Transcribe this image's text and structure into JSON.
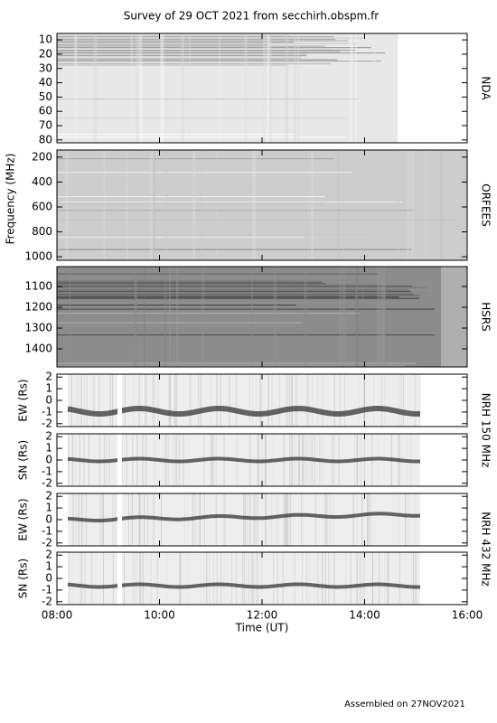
{
  "title": "Survey of 29 OCT 2021 from secchirh.obspm.fr",
  "footer": "Assembled on 27NOV2021",
  "chart_data": [
    {
      "type": "spectrogram",
      "side_label": "NDA",
      "ylim": [
        5.5,
        82
      ],
      "inverted": true,
      "yticks": [
        10,
        20,
        30,
        40,
        50,
        60,
        70,
        80
      ]
    },
    {
      "type": "spectrogram",
      "side_label": "ORFEES",
      "ylabel": "Frequency (MHz)",
      "ylim": [
        143,
        1028
      ],
      "inverted": true,
      "yticks": [
        200,
        400,
        600,
        800,
        1000
      ]
    },
    {
      "type": "spectrogram",
      "side_label": "HSRS",
      "ylim": [
        1004,
        1487
      ],
      "inverted": true,
      "yticks": [
        1100,
        1200,
        1300,
        1400
      ]
    },
    {
      "type": "radioheliograph",
      "side_label": "NRH 150 MHz",
      "ylabel": "EW (Rs)",
      "ylim": [
        -2.25,
        2.25
      ],
      "yticks": [
        -2,
        -1,
        0,
        1,
        2
      ]
    },
    {
      "type": "radioheliograph",
      "ylabel": "SN (Rs)",
      "ylim": [
        -2.25,
        2.25
      ],
      "yticks": [
        -2,
        -1,
        0,
        1,
        2
      ]
    },
    {
      "type": "radioheliograph",
      "side_label": "NRH 432 MHz",
      "ylabel": "EW (Rs)",
      "ylim": [
        -2.25,
        2.25
      ],
      "yticks": [
        -2,
        -1,
        0,
        1,
        2
      ]
    },
    {
      "type": "radioheliograph",
      "ylabel": "SN (Rs)",
      "ylim": [
        -2.25,
        2.25
      ],
      "yticks": [
        -2,
        -1,
        0,
        1,
        2
      ],
      "xlabel": "Time (UT)",
      "xlim": [
        8,
        16
      ],
      "xticks": [
        {
          "value": 8,
          "label": "08:00"
        },
        {
          "value": 10,
          "label": "10:00"
        },
        {
          "value": 12,
          "label": "12:00"
        },
        {
          "value": 14,
          "label": "14:00"
        },
        {
          "value": 16,
          "label": "16:00"
        }
      ]
    }
  ]
}
